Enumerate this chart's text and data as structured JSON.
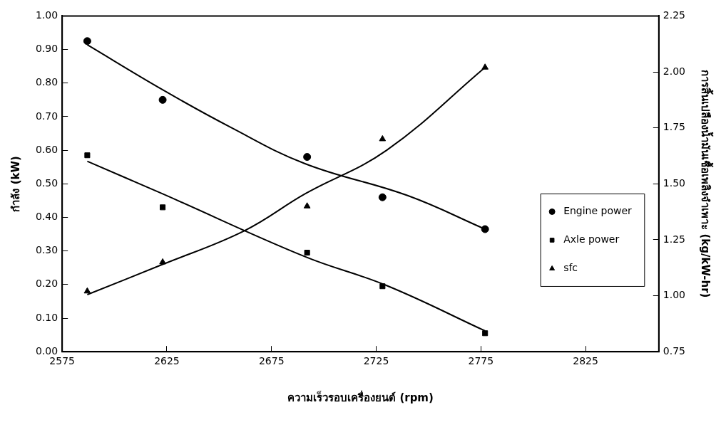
{
  "chart_data": {
    "type": "scatter",
    "xlabel": "ความเร็วรอบเครื่องยนต์ (rpm)",
    "ylabel": "กำลัง (kW)",
    "y2label": "การสิ้นเปลืองน้ำมันเชื้อเพลิงจำเพาะ (kg/kW-hr)",
    "xlim": [
      2575,
      2860
    ],
    "xticks": [
      2575,
      2625,
      2675,
      2725,
      2775,
      2825
    ],
    "ylim": [
      0,
      1
    ],
    "yticks": [
      {
        "value": 0,
        "label": "0.00"
      },
      {
        "value": 0.1,
        "label": "0.10"
      },
      {
        "value": 0.2,
        "label": "0.20"
      },
      {
        "value": 0.3,
        "label": "0.30"
      },
      {
        "value": 0.4,
        "label": "0.40"
      },
      {
        "value": 0.5,
        "label": "0.50"
      },
      {
        "value": 0.6,
        "label": "0.60"
      },
      {
        "value": 0.7,
        "label": "0.70"
      },
      {
        "value": 0.8,
        "label": "0.80"
      },
      {
        "value": 0.9,
        "label": "0.90"
      },
      {
        "value": 1,
        "label": "1.00"
      }
    ],
    "y2lim": [
      0.75,
      2.25
    ],
    "y2ticks": [
      {
        "value": 0.75,
        "label": "0.75"
      },
      {
        "value": 1,
        "label": "1.00"
      },
      {
        "value": 1.25,
        "label": "1.25"
      },
      {
        "value": 1.5,
        "label": "1.50"
      },
      {
        "value": 1.75,
        "label": "1.75"
      },
      {
        "value": 2,
        "label": "2.00"
      },
      {
        "value": 2.25,
        "label": "2.25"
      }
    ],
    "grid": false,
    "legend": "right",
    "series": [
      {
        "name": "Engine power",
        "marker": "circle",
        "color": "#000000",
        "x": [
          2587,
          2623,
          2692,
          2728,
          2777
        ],
        "values": [
          0.925,
          0.75,
          0.58,
          0.46,
          0.365
        ]
      },
      {
        "name": "Axle power",
        "marker": "square",
        "color": "#000000",
        "x": [
          2587,
          2623,
          2692,
          2728,
          2777
        ],
        "values": [
          0.585,
          0.43,
          0.295,
          0.195,
          0.055
        ]
      },
      {
        "name": "sfc",
        "marker": "triangle",
        "color": "#000000",
        "axis": "y2",
        "x": [
          2587,
          2623,
          2692,
          2728,
          2777
        ],
        "values": [
          1.02,
          1.15,
          1.4,
          1.7,
          2.02
        ]
      },
      {
        "type": "line",
        "marker": "none",
        "color": "#000000",
        "x": [
          2587,
          2623,
          2655,
          2691,
          2740,
          2777
        ],
        "values": [
          0.914,
          0.78,
          0.67,
          0.56,
          0.465,
          0.365
        ]
      },
      {
        "type": "line",
        "marker": "none",
        "color": "#000000",
        "x": [
          2587,
          2623,
          2691,
          2730,
          2777
        ],
        "values": [
          0.567,
          0.47,
          0.283,
          0.197,
          0.062
        ]
      },
      {
        "type": "line",
        "marker": "none",
        "color": "#000000",
        "axis": "y2",
        "x": [
          2587,
          2623,
          2662,
          2691,
          2730,
          2777
        ],
        "values": [
          1.005,
          1.14,
          1.29,
          1.455,
          1.65,
          2.02
        ]
      }
    ]
  }
}
